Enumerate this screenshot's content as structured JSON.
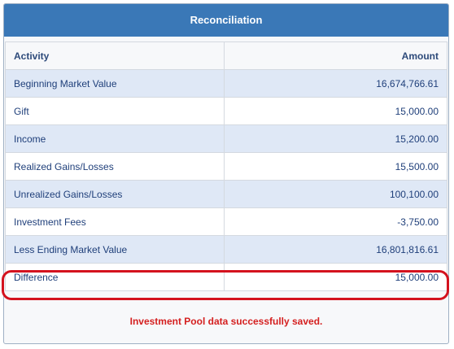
{
  "panel": {
    "title": "Reconciliation"
  },
  "table": {
    "headers": {
      "activity": "Activity",
      "amount": "Amount"
    },
    "rows": [
      {
        "activity": "Beginning Market Value",
        "amount": "16,674,766.61"
      },
      {
        "activity": "Gift",
        "amount": "15,000.00"
      },
      {
        "activity": "Income",
        "amount": "15,200.00"
      },
      {
        "activity": "Realized Gains/Losses",
        "amount": "15,500.00"
      },
      {
        "activity": "Unrealized Gains/Losses",
        "amount": "100,100.00"
      },
      {
        "activity": "Investment Fees",
        "amount": "-3,750.00"
      },
      {
        "activity": "Less Ending Market Value",
        "amount": "16,801,816.61"
      },
      {
        "activity": "Difference",
        "amount": "15,000.00"
      }
    ]
  },
  "status": {
    "message": "Investment Pool data successfully saved."
  },
  "colors": {
    "header_bg": "#3a78b7",
    "row_alt_bg": "#dfe8f6",
    "highlight": "#d4121e",
    "status_text": "#d41f1f"
  }
}
